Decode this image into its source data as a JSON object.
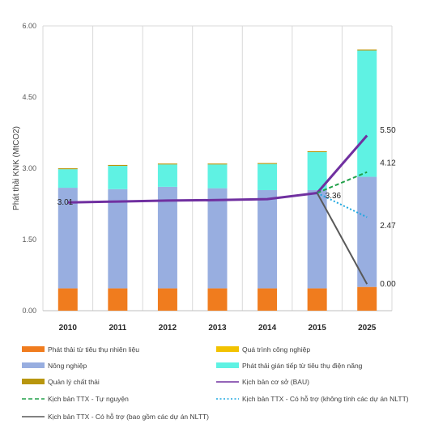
{
  "chart_data": {
    "type": "bar",
    "ylabel": "Phát thải KNK (MtCO2)",
    "ylim": [
      0,
      6
    ],
    "yticks": [
      "0.00",
      "1.50",
      "3.00",
      "4.50",
      "6.00"
    ],
    "categories": [
      "2010",
      "2011",
      "2012",
      "2013",
      "2014",
      "2015",
      "2025"
    ],
    "stacked_series": [
      {
        "name": "Phát thải từ tiêu thụ nhiên liệu",
        "color": "#f07c1e",
        "values": [
          0.47,
          0.47,
          0.47,
          0.47,
          0.47,
          0.47,
          0.5
        ]
      },
      {
        "name": "Quá trình công nghiệp",
        "color": "#f2c200",
        "values": [
          0.0,
          0.0,
          0.0,
          0.0,
          0.0,
          0.0,
          0.0
        ]
      },
      {
        "name": "Nông nghiệp",
        "color": "#98aee0",
        "values": [
          2.12,
          2.09,
          2.14,
          2.11,
          2.07,
          2.07,
          2.32
        ]
      },
      {
        "name": "Phát thải gián tiếp từ tiêu thụ điện năng",
        "color": "#5ff2e3",
        "values": [
          0.39,
          0.49,
          0.47,
          0.5,
          0.55,
          0.8,
          2.66
        ]
      },
      {
        "name": "Quản lý chất thải",
        "color": "#b8960e",
        "values": [
          0.02,
          0.02,
          0.02,
          0.02,
          0.02,
          0.02,
          0.02
        ]
      }
    ],
    "line_series": [
      {
        "name": "Kịch bản cơ sở (BAU)",
        "color": "#7030a0",
        "style": "solid",
        "x": [
          "2010",
          "2011",
          "2012",
          "2013",
          "2014",
          "2015",
          "2025"
        ],
        "values": [
          2.28,
          2.3,
          2.32,
          2.33,
          2.35,
          2.48,
          3.69
        ]
      },
      {
        "name": "Kịch bản TTX - Tự nguyện",
        "color": "#22a04a",
        "style": "dashed",
        "x": [
          "2015",
          "2025"
        ],
        "values": [
          2.48,
          2.92
        ]
      },
      {
        "name": "Kịch bản TTX - Có hỗ trợ (không tính các dự án NLTT)",
        "color": "#1ea7e0",
        "style": "dotted",
        "x": [
          "2015",
          "2025"
        ],
        "values": [
          2.48,
          1.97
        ]
      },
      {
        "name": "Kịch bản TTX - Có hỗ trợ (bao gồm các dự án NLTT)",
        "color": "#595959",
        "style": "solid",
        "x": [
          "2015",
          "2025"
        ],
        "values": [
          2.48,
          0.56
        ]
      }
    ],
    "annotations": [
      {
        "text": "3.01",
        "x": "2010",
        "y": 2.28
      },
      {
        "text": "5.50",
        "x": "2025",
        "y": 3.8
      },
      {
        "text": "3.36",
        "x": "2015",
        "y": 2.42
      },
      {
        "text": "4.12",
        "x": "2025",
        "y": 3.11
      },
      {
        "text": "2.47",
        "x": "2025",
        "y": 1.79
      },
      {
        "text": "0.00",
        "x": "2025",
        "y": 0.56
      }
    ],
    "legend_order": [
      "Phát thải từ tiêu thụ nhiên liệu",
      "Quá trình công nghiệp",
      "Nông nghiệp",
      "Phát thải gián tiếp từ tiêu thụ điện năng",
      "Quản lý chất thải",
      "Kịch bản cơ sở (BAU)",
      "Kịch bản TTX - Tự nguyện",
      "Kịch bản TTX - Có hỗ trợ (không tính các dự án NLTT)",
      "Kịch bản TTX - Có hỗ trợ (bao gồm các dự án NLTT)"
    ],
    "grid": "vertical",
    "legend_position": "bottom"
  }
}
